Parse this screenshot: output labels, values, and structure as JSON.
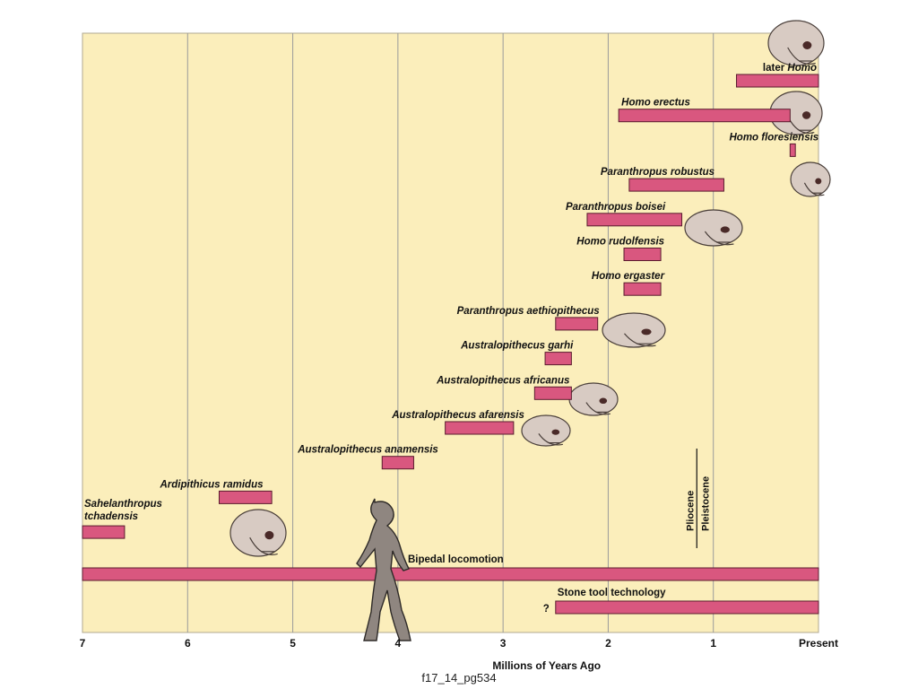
{
  "caption": "f17_14_pg534",
  "chart_data": {
    "type": "range_bar",
    "xlabel": "Millions of Years Ago",
    "x_ticks": [
      {
        "value": 7,
        "label": "7"
      },
      {
        "value": 6,
        "label": "6"
      },
      {
        "value": 5,
        "label": "5"
      },
      {
        "value": 4,
        "label": "4"
      },
      {
        "value": 3,
        "label": "3"
      },
      {
        "value": 2,
        "label": "2"
      },
      {
        "value": 1,
        "label": "1"
      },
      {
        "value": 0,
        "label": "Present"
      }
    ],
    "xlim": [
      7,
      0
    ],
    "grid": "vertical",
    "colors": {
      "background": "#fbeebb",
      "bar": "#d9577f",
      "grid": "#9a9a9a"
    },
    "epochs": [
      {
        "label": "Pliocene",
        "side": "older"
      },
      {
        "label": "Pleistocene",
        "side": "younger"
      }
    ],
    "epoch_boundary": 1.2,
    "series": [
      {
        "name": "later Homo",
        "start": 0.78,
        "end": 0.0,
        "row": 1,
        "label_parts": [
          "later ",
          "Homo"
        ]
      },
      {
        "name": "Homo erectus",
        "start": 1.9,
        "end": 0.27,
        "row": 2
      },
      {
        "name": "Homo floresiensis",
        "start": 0.27,
        "end": 0.22,
        "row": 3
      },
      {
        "name": "Paranthropus robustus",
        "start": 1.8,
        "end": 0.9,
        "row": 4
      },
      {
        "name": "Paranthropus boisei",
        "start": 2.2,
        "end": 1.3,
        "row": 5
      },
      {
        "name": "Homo rudolfensis",
        "start": 1.85,
        "end": 1.5,
        "row": 6
      },
      {
        "name": "Homo ergaster",
        "start": 1.85,
        "end": 1.5,
        "row": 7
      },
      {
        "name": "Paranthropus aethiopithecus",
        "start": 2.5,
        "end": 2.1,
        "row": 8
      },
      {
        "name": "Australopithecus garhi",
        "start": 2.6,
        "end": 2.35,
        "row": 9
      },
      {
        "name": "Australopithecus africanus",
        "start": 2.7,
        "end": 2.35,
        "row": 10
      },
      {
        "name": "Australopithecus afarensis",
        "start": 3.55,
        "end": 2.9,
        "row": 11
      },
      {
        "name": "Australopithecus anamensis",
        "start": 4.15,
        "end": 3.85,
        "row": 12
      },
      {
        "name": "Ardipithicus ramidus",
        "start": 5.7,
        "end": 5.2,
        "row": 13
      },
      {
        "name": "Sahelanthropus tchadensis",
        "start": 7.0,
        "end": 6.6,
        "row": 14,
        "label_lines": [
          "Sahelanthropus",
          "tchadensis"
        ]
      }
    ],
    "traits": [
      {
        "name": "Bipedal locomotion",
        "start": 7.0,
        "end": 0.0
      },
      {
        "name": "Stone tool technology",
        "start": 2.5,
        "end": 0.0,
        "uncertain_start_mark": "?"
      }
    ]
  }
}
